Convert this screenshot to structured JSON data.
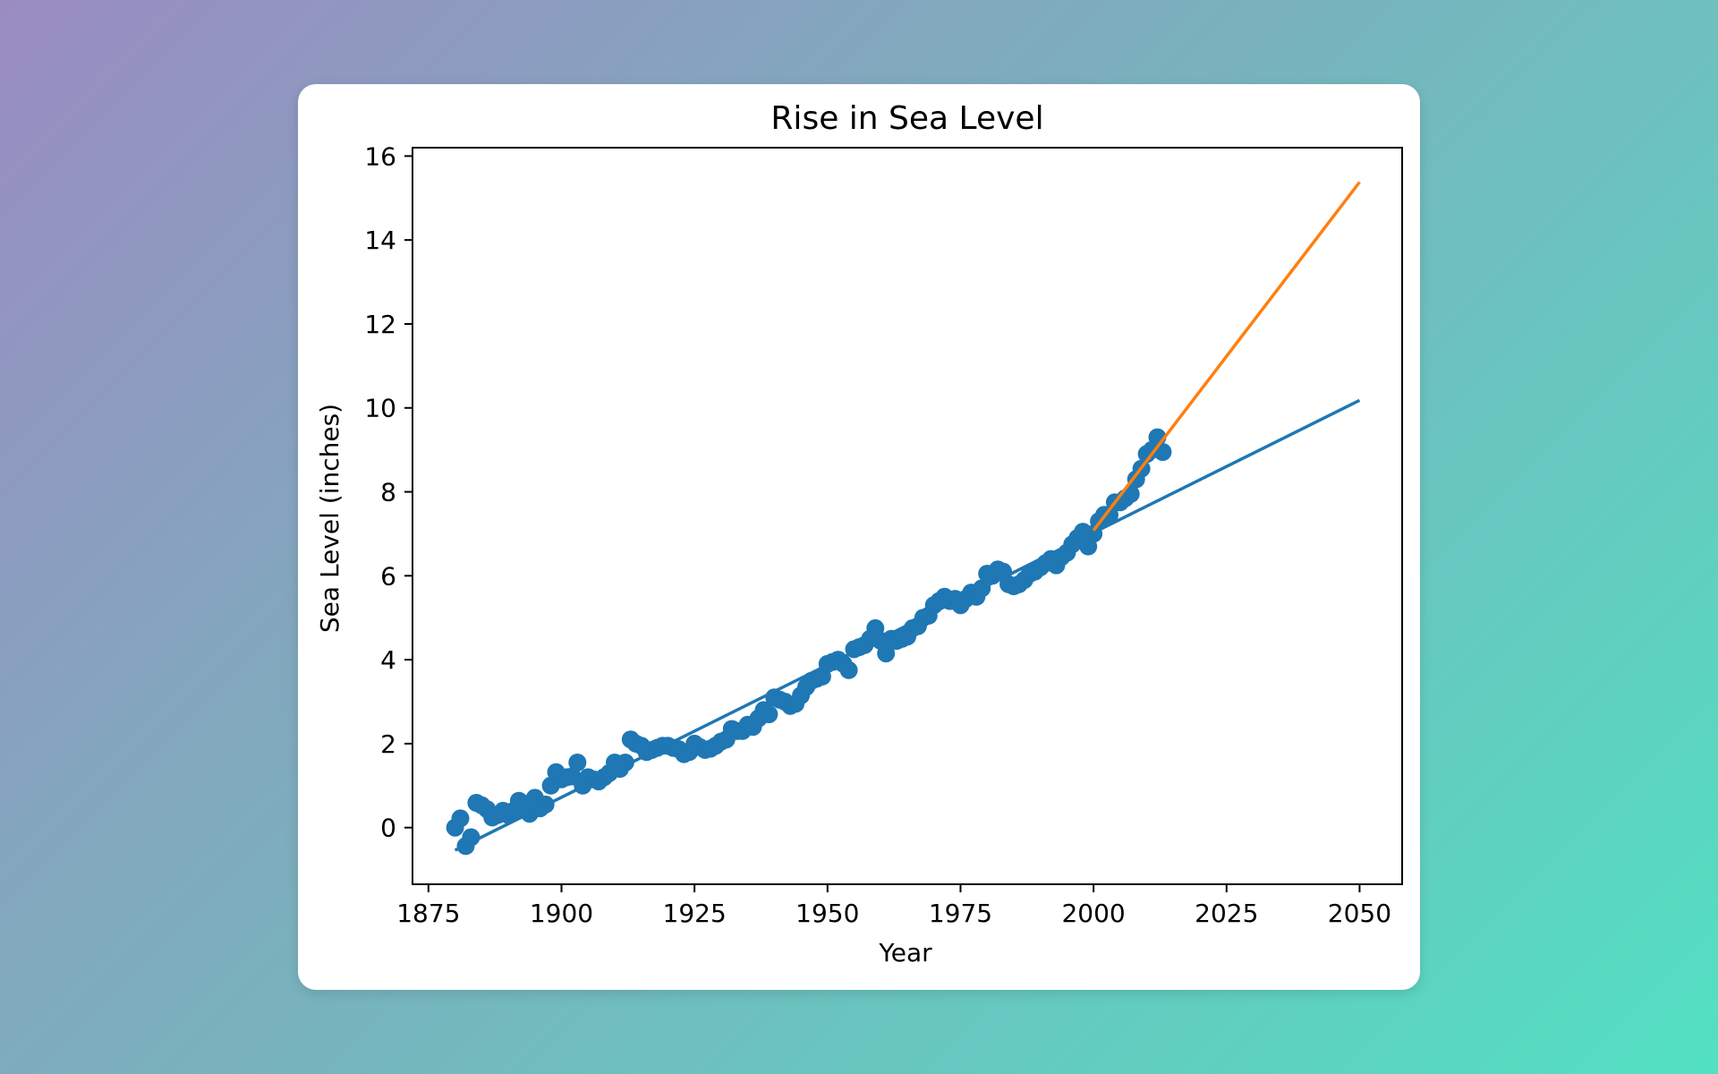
{
  "colors": {
    "scatter": "#1f77b4",
    "fit_full": "#1f77b4",
    "fit_recent": "#ff7f0e",
    "axis": "#000000",
    "card": "#ffffff"
  },
  "chart_data": {
    "type": "scatter",
    "title": "Rise in Sea Level",
    "xlabel": "Year",
    "ylabel": "Sea Level (inches)",
    "xlim": [
      1872,
      2058
    ],
    "ylim": [
      -1.35,
      16.2
    ],
    "xticks": [
      1875,
      1900,
      1925,
      1950,
      1975,
      2000,
      2025,
      2050
    ],
    "yticks": [
      0,
      2,
      4,
      6,
      8,
      10,
      12,
      14,
      16
    ],
    "grid": false,
    "legend": "none",
    "series": [
      {
        "kind": "scatter",
        "color": "#1f77b4",
        "x": [
          1880,
          1881,
          1882,
          1883,
          1884,
          1885,
          1886,
          1887,
          1888,
          1889,
          1890,
          1891,
          1892,
          1893,
          1894,
          1895,
          1896,
          1897,
          1898,
          1899,
          1900,
          1901,
          1902,
          1903,
          1904,
          1905,
          1906,
          1907,
          1908,
          1909,
          1910,
          1911,
          1912,
          1913,
          1914,
          1915,
          1916,
          1917,
          1918,
          1919,
          1920,
          1921,
          1922,
          1923,
          1924,
          1925,
          1926,
          1927,
          1928,
          1929,
          1930,
          1931,
          1932,
          1933,
          1934,
          1935,
          1936,
          1937,
          1938,
          1939,
          1940,
          1941,
          1942,
          1943,
          1944,
          1945,
          1946,
          1947,
          1948,
          1949,
          1950,
          1951,
          1952,
          1953,
          1954,
          1955,
          1956,
          1957,
          1958,
          1959,
          1960,
          1961,
          1962,
          1963,
          1964,
          1965,
          1966,
          1967,
          1968,
          1969,
          1970,
          1971,
          1972,
          1973,
          1974,
          1975,
          1976,
          1977,
          1978,
          1979,
          1980,
          1981,
          1982,
          1983,
          1984,
          1985,
          1986,
          1987,
          1988,
          1989,
          1990,
          1991,
          1992,
          1993,
          1994,
          1995,
          1996,
          1997,
          1998,
          1999,
          2000,
          2001,
          2002,
          2003,
          2004,
          2005,
          2006,
          2007,
          2008,
          2009,
          2010,
          2011,
          2012,
          2013
        ],
        "y": [
          0.0,
          0.22,
          -0.44,
          -0.23,
          0.59,
          0.53,
          0.44,
          0.24,
          0.3,
          0.4,
          0.3,
          0.4,
          0.64,
          0.57,
          0.33,
          0.71,
          0.46,
          0.55,
          1.0,
          1.32,
          1.15,
          1.2,
          1.22,
          1.55,
          1.0,
          1.2,
          1.15,
          1.1,
          1.2,
          1.3,
          1.55,
          1.4,
          1.55,
          2.1,
          2.0,
          1.95,
          1.8,
          1.85,
          1.9,
          1.95,
          1.95,
          1.9,
          1.87,
          1.75,
          1.8,
          2.0,
          1.92,
          1.85,
          1.88,
          1.95,
          2.05,
          2.1,
          2.35,
          2.3,
          2.3,
          2.45,
          2.4,
          2.6,
          2.8,
          2.7,
          3.1,
          3.05,
          3.0,
          2.9,
          2.95,
          3.15,
          3.35,
          3.5,
          3.55,
          3.6,
          3.9,
          3.95,
          4.0,
          3.9,
          3.75,
          4.25,
          4.3,
          4.35,
          4.5,
          4.75,
          4.45,
          4.15,
          4.5,
          4.45,
          4.5,
          4.55,
          4.75,
          4.8,
          5.0,
          5.05,
          5.3,
          5.4,
          5.5,
          5.4,
          5.45,
          5.3,
          5.45,
          5.6,
          5.5,
          5.7,
          6.05,
          6.0,
          6.15,
          6.1,
          5.8,
          5.75,
          5.8,
          5.9,
          6.05,
          6.1,
          6.2,
          6.3,
          6.4,
          6.25,
          6.45,
          6.55,
          6.75,
          6.9,
          7.05,
          6.7,
          7.0,
          7.3,
          7.45,
          7.45,
          7.75,
          7.75,
          7.85,
          7.95,
          8.3,
          8.55,
          8.9,
          9.0,
          9.3,
          8.95
        ]
      },
      {
        "kind": "line",
        "name": "",
        "color": "#1f77b4",
        "x": [
          1880,
          2050
        ],
        "y": [
          -0.54,
          10.18
        ]
      },
      {
        "kind": "line",
        "name": "",
        "color": "#ff7f0e",
        "x": [
          2000,
          2050
        ],
        "y": [
          7.08,
          15.38
        ]
      }
    ]
  }
}
